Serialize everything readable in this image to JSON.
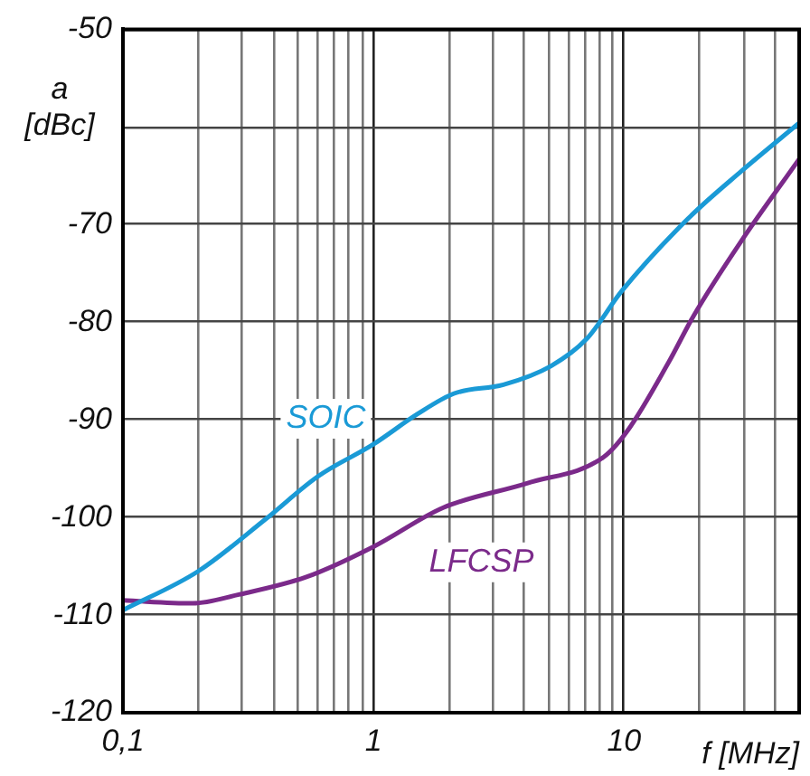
{
  "chart_data": {
    "type": "line",
    "xlabel": "f [MHz]",
    "ylabel": "a [dBc]",
    "log": "x",
    "grid": true,
    "legend": false,
    "marker": "none",
    "line_style": "solid",
    "xlim": [
      0.1,
      50
    ],
    "ylim": [
      -120,
      -50
    ],
    "xticks": [
      {
        "value": 0.1,
        "label": "0,1"
      },
      {
        "value": 0.2,
        "label": null
      },
      {
        "value": 0.3,
        "label": null
      },
      {
        "value": 0.4,
        "label": null
      },
      {
        "value": 0.5,
        "label": null
      },
      {
        "value": 0.6,
        "label": null
      },
      {
        "value": 0.7,
        "label": null
      },
      {
        "value": 0.8,
        "label": null
      },
      {
        "value": 0.9,
        "label": null
      },
      1,
      {
        "value": 2,
        "label": null
      },
      {
        "value": 3,
        "label": null
      },
      {
        "value": 4,
        "label": null
      },
      {
        "value": 5,
        "label": null
      },
      {
        "value": 6,
        "label": null
      },
      {
        "value": 7,
        "label": null
      },
      {
        "value": 8,
        "label": null
      },
      {
        "value": 9,
        "label": null
      },
      10,
      {
        "value": 20,
        "label": null
      },
      {
        "value": 30,
        "label": null
      },
      {
        "value": 40,
        "label": null
      },
      {
        "value": 50,
        "label": null
      }
    ],
    "yticks": [
      -50,
      {
        "value": -60,
        "label": null
      },
      -70,
      -80,
      -90,
      -100,
      -110,
      -120
    ],
    "series": [
      {
        "name": "SOIC",
        "color": "#1a9ad6",
        "x": [
          0.1,
          0.2,
          0.37,
          0.6,
          1,
          1.5,
          2.1,
          3.3,
          5.1,
          7.1,
          9.8,
          18,
          29.5,
          50
        ],
        "values": [
          -109.5,
          -105.5,
          -100.2,
          -95.8,
          -92.5,
          -89.4,
          -87.3,
          -86.4,
          -84.5,
          -81.7,
          -76.8,
          -69.4,
          -64.5,
          -59.6
        ]
      },
      {
        "name": "LFCSP",
        "color": "#7b2a8a",
        "x": [
          0.1,
          0.19,
          0.29,
          0.54,
          1,
          1.9,
          4.1,
          8.3,
          10.4,
          15,
          19,
          29,
          50
        ],
        "values": [
          -108.5,
          -108.8,
          -107.9,
          -106.1,
          -103,
          -99,
          -96.5,
          -93.8,
          -91,
          -84.2,
          -79.3,
          -71.9,
          -63.3
        ]
      }
    ]
  }
}
